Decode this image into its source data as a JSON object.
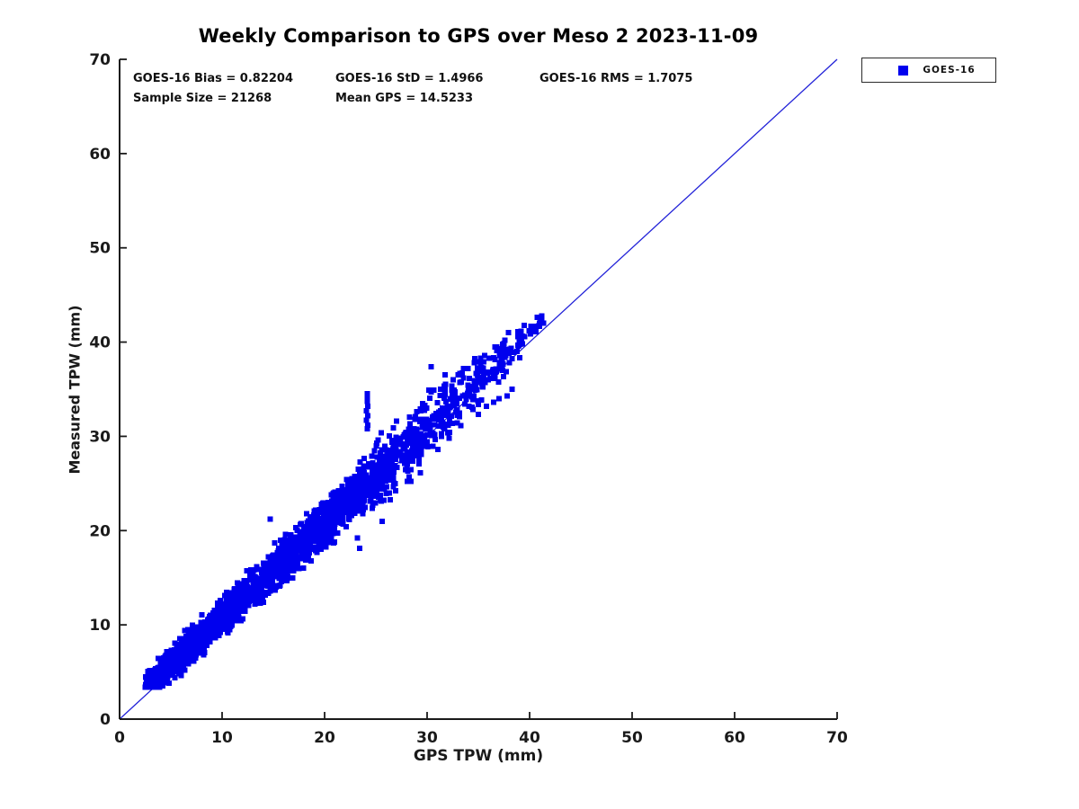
{
  "title": "Weekly Comparison to GPS over Meso 2 2023-11-09",
  "stats": {
    "bias": "GOES-16 Bias = 0.82204",
    "std": "GOES-16 StD = 1.4966",
    "rms": "GOES-16 RMS = 1.7075",
    "sample": "Sample Size = 21268",
    "mean_gps": "Mean GPS = 14.5233"
  },
  "legend": {
    "label": "GOES-16"
  },
  "colors": {
    "marker": "#0000EE",
    "reference_line": "#2222D8",
    "axis": "#1a1a1a",
    "background": "#ffffff"
  },
  "chart_data": {
    "type": "scatter",
    "title": "Weekly Comparison to GPS over Meso 2 2023-11-09",
    "xlabel": "GPS TPW (mm)",
    "ylabel": "Measured TPW (mm)",
    "xlim": [
      0,
      70
    ],
    "ylim": [
      0,
      70
    ],
    "xticks": [
      0,
      10,
      20,
      30,
      40,
      50,
      60,
      70
    ],
    "yticks": [
      0,
      10,
      20,
      30,
      40,
      50,
      60,
      70
    ],
    "grid": false,
    "legend_position": "outside-top-right",
    "reference_line": {
      "from": [
        0,
        0
      ],
      "to": [
        70,
        70
      ]
    },
    "series": [
      {
        "name": "GOES-16",
        "marker": "square",
        "bias": 0.82204,
        "std": 1.4966,
        "rms": 1.7075,
        "sample_size": 21268,
        "mean_gps": 14.5233,
        "x_range": [
          2.4,
          41.5
        ],
        "y_range": [
          3.5,
          42.5
        ],
        "seed": 20231109,
        "cloud_segments": [
          {
            "xmin": 2.5,
            "xmax": 4.5,
            "count": 420,
            "spread": 0.55
          },
          {
            "xmin": 3.5,
            "xmax": 8.0,
            "count": 500,
            "spread": 0.7
          },
          {
            "xmin": 6.0,
            "xmax": 12.0,
            "count": 460,
            "spread": 0.85
          },
          {
            "xmin": 10.0,
            "xmax": 17.0,
            "count": 490,
            "spread": 0.95
          },
          {
            "xmin": 15.0,
            "xmax": 21.0,
            "count": 430,
            "spread": 1.05
          },
          {
            "xmin": 19.0,
            "xmax": 24.0,
            "count": 300,
            "spread": 1.15
          },
          {
            "xmin": 22.0,
            "xmax": 27.0,
            "count": 230,
            "spread": 1.3
          },
          {
            "xmin": 25.0,
            "xmax": 30.0,
            "count": 160,
            "spread": 1.55
          },
          {
            "xmin": 28.0,
            "xmax": 33.0,
            "count": 115,
            "spread": 1.55
          },
          {
            "xmin": 31.0,
            "xmax": 35.5,
            "count": 75,
            "spread": 1.35
          },
          {
            "xmin": 34.0,
            "xmax": 38.0,
            "count": 55,
            "spread": 1.1
          },
          {
            "xmin": 36.5,
            "xmax": 39.5,
            "count": 35,
            "spread": 0.85
          },
          {
            "xmin": 39.0,
            "xmax": 41.5,
            "count": 22,
            "spread": 0.7
          }
        ],
        "outlier_points": [
          [
            24.15,
            34.5
          ],
          [
            24.15,
            34.1
          ],
          [
            24.15,
            33.7
          ],
          [
            24.2,
            33.2
          ],
          [
            24.1,
            32.7
          ],
          [
            24.2,
            32.2
          ],
          [
            24.1,
            31.7
          ],
          [
            24.2,
            31.2
          ],
          [
            24.15,
            30.8
          ],
          [
            30.4,
            37.4
          ],
          [
            14.7,
            21.2
          ],
          [
            25.6,
            21.0
          ],
          [
            23.4,
            18.1
          ],
          [
            23.2,
            19.2
          ],
          [
            41.2,
            42.3
          ],
          [
            41.3,
            42.0
          ],
          [
            40.9,
            41.7
          ],
          [
            40.6,
            41.4
          ],
          [
            35.6,
            38.6
          ],
          [
            36.8,
            39.5
          ],
          [
            34.0,
            37.2
          ],
          [
            34.6,
            37.8
          ],
          [
            35.2,
            38.3
          ],
          [
            33.4,
            36.7
          ],
          [
            37.0,
            34.0
          ],
          [
            37.8,
            34.3
          ],
          [
            38.3,
            35.0
          ],
          [
            36.5,
            33.6
          ],
          [
            35.8,
            33.2
          ],
          [
            31.5,
            33.0
          ],
          [
            32.5,
            33.4
          ],
          [
            33.8,
            33.9
          ],
          [
            3.1,
            3.9
          ],
          [
            3.6,
            3.8
          ],
          [
            4.2,
            4.0
          ]
        ]
      }
    ]
  }
}
